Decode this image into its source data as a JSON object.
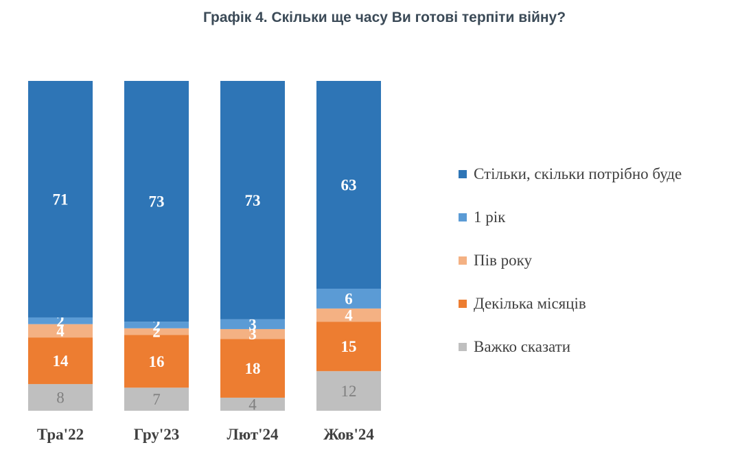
{
  "title": "Графік 4. Скільки ще часу Ви готові терпіти війну?",
  "chart_data": {
    "type": "bar",
    "stacked": true,
    "percent_stacked": true,
    "title": "Графік 4. Скільки ще часу Ви готові терпіти війну?",
    "categories": [
      "Тра'22",
      "Гру'23",
      "Лют'24",
      "Жов'24"
    ],
    "series": [
      {
        "name": "Важко сказати",
        "color": "#bfbfbf",
        "label_color": "#7f7f7f",
        "values": [
          8,
          7,
          4,
          12
        ]
      },
      {
        "name": "Декілька місяців",
        "color": "#ed7d31",
        "label_color": "#ffffff",
        "values": [
          14,
          16,
          18,
          15
        ]
      },
      {
        "name": "Пів року",
        "color": "#f4b183",
        "label_color": "#ffffff",
        "values": [
          4,
          2,
          3,
          4
        ]
      },
      {
        "name": "1 рік",
        "color": "#5b9bd5",
        "label_color": "#ffffff",
        "values": [
          2,
          2,
          3,
          6
        ]
      },
      {
        "name": "Стільки, скільки потрібно буде",
        "color": "#2e75b6",
        "label_color": "#ffffff",
        "values": [
          71,
          73,
          73,
          63
        ]
      }
    ],
    "legend_order": [
      4,
      3,
      2,
      1,
      0
    ],
    "legend_position": "right",
    "grid": false
  }
}
